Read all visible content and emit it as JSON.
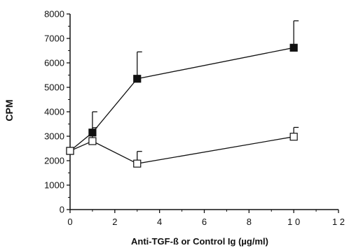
{
  "chart_data": {
    "type": "line",
    "title": "",
    "xlabel": "Anti-TGF-ß or Control Ig (µg/ml)",
    "ylabel": "CPM",
    "xlim": [
      0,
      12
    ],
    "ylim": [
      0,
      8000
    ],
    "xticks": [
      0,
      2,
      4,
      6,
      8,
      10,
      12
    ],
    "yticks": [
      0,
      1000,
      2000,
      3000,
      4000,
      5000,
      6000,
      7000,
      8000
    ],
    "xtick_labels": [
      "0",
      "2",
      "4",
      "6",
      "8",
      "1 0",
      "1 2"
    ],
    "ytick_labels": [
      "0",
      "1000",
      "2000",
      "3000",
      "4000",
      "5000",
      "6000",
      "7000",
      "8000"
    ],
    "grid": false,
    "series": [
      {
        "marker": "filled-square",
        "color": "#111111",
        "x": [
          0,
          1,
          3,
          10
        ],
        "y": [
          2400,
          3150,
          5350,
          6620
        ],
        "error_upper": [
          0,
          850,
          1100,
          1100
        ]
      },
      {
        "marker": "open-square",
        "color": "#111111",
        "x": [
          0,
          1,
          3,
          10
        ],
        "y": [
          2400,
          2800,
          1880,
          2980
        ],
        "error_upper": [
          0,
          550,
          500,
          380
        ]
      }
    ]
  }
}
